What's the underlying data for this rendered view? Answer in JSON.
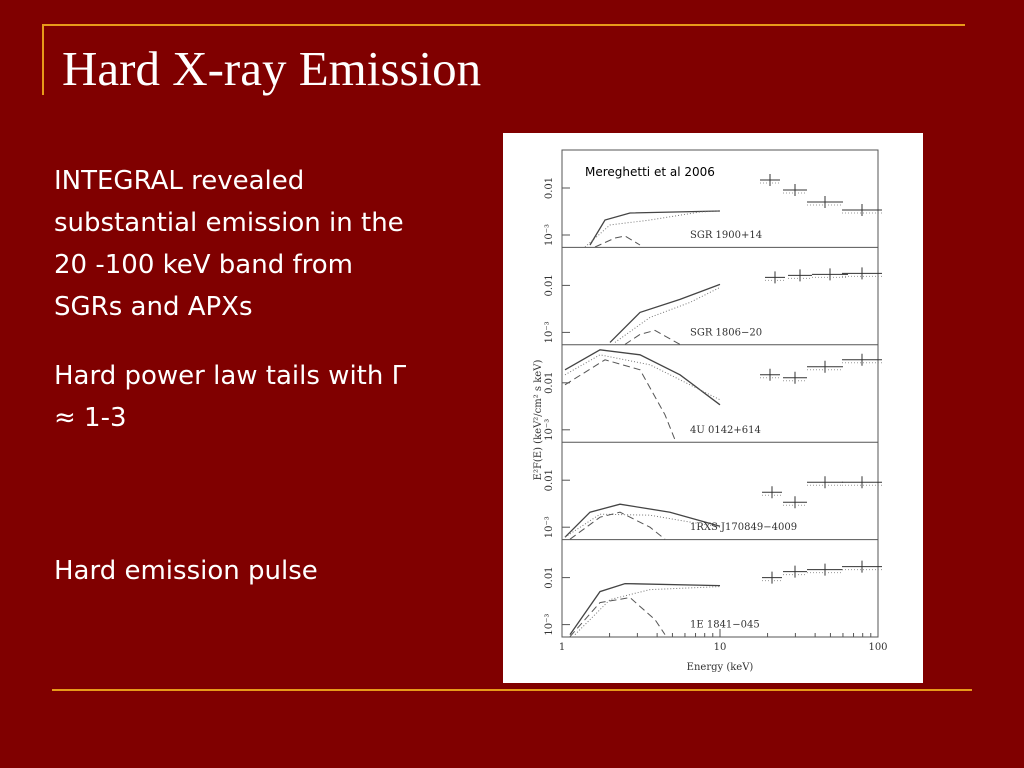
{
  "title": "Hard X-ray Emission",
  "bullets": [
    "INTEGRAL revealed substantial emission in the 20 -100 keV band from SGRs and APXs",
    "Hard power law tails with Γ ≈ 1-3",
    "Hard emission pulse"
  ],
  "figure": {
    "credit": "Mereghetti et al 2006",
    "x_label": "Energy (keV)",
    "y_label": "E²F(E) (keV²/cm² s keV)",
    "x_tick_labels": [
      "1",
      "10",
      "100"
    ],
    "y_tick_labels": [
      "0.01",
      "10⁻³"
    ],
    "panels": [
      "SGR 1900+14",
      "SGR 1806−20",
      "4U 0142+614",
      "1RXS J170849−4009",
      "1E 1841−045"
    ]
  }
}
